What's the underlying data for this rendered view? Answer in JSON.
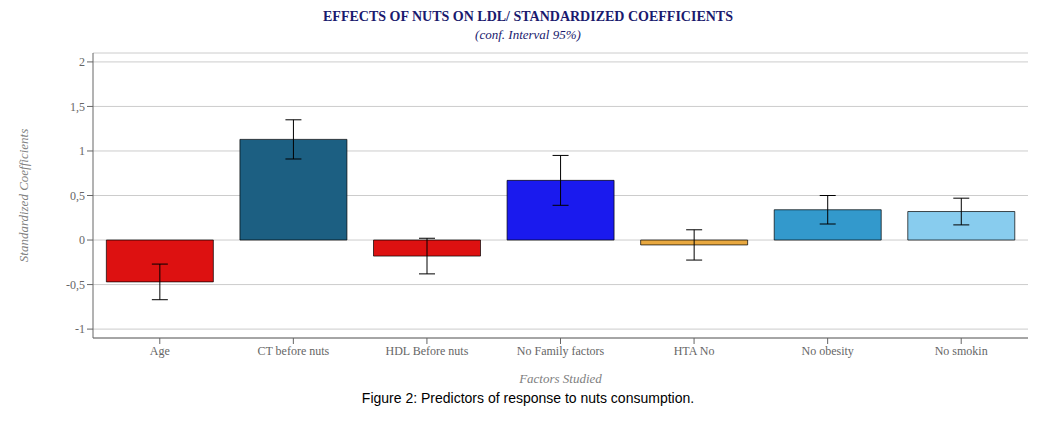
{
  "chart_data": {
    "type": "bar",
    "title": "EFFECTS OF NUTS ON LDL/ STANDARDIZED COEFFICIENTS",
    "subtitle": "(conf. Interval 95%)",
    "caption": "Figure 2: Predictors of response to nuts consumption.",
    "xlabel": "Factors Studied",
    "ylabel": "Standardized Coefficients",
    "categories": [
      "Age",
      "CT before nuts",
      "HDL Before nuts",
      "No Family factors",
      "HTA No",
      "No obesity",
      "No smokin"
    ],
    "values": [
      -0.47,
      1.13,
      -0.18,
      0.67,
      -0.055,
      0.34,
      0.32
    ],
    "errors": [
      0.2,
      0.22,
      0.2,
      0.28,
      0.17,
      0.16,
      0.15
    ],
    "colors": [
      "#dd1111",
      "#1c5f82",
      "#dd1111",
      "#1a1aee",
      "#e8a840",
      "#3399cc",
      "#88ccee"
    ],
    "ylim": [
      -1.1,
      2.1
    ],
    "yticks": [
      -1,
      {
        "value": -0.5,
        "label": "-0,5"
      },
      0,
      {
        "value": 0.5,
        "label": "0,5"
      },
      1,
      {
        "value": 1.5,
        "label": "1,5"
      },
      2
    ],
    "grid": true
  }
}
